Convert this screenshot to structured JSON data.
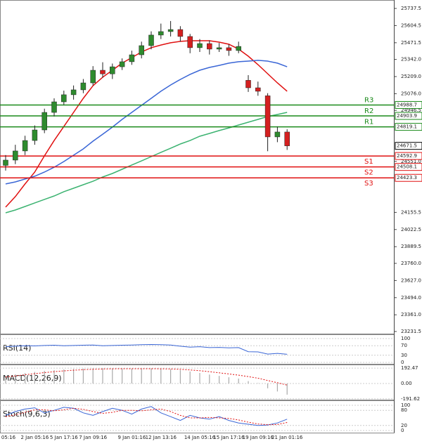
{
  "chart_data": {
    "type": "candlestick",
    "categories": [
      "05:16",
      null,
      null,
      "2 Jan 05:16",
      null,
      null,
      "5 Jan 17:16",
      null,
      null,
      "7 Jan 09:16",
      null,
      null,
      null,
      "9 Jan 01:16",
      null,
      null,
      "12 Jan 13:16",
      null,
      null,
      null,
      "14 Jan 05:16",
      null,
      null,
      "15 Jan 17:16",
      null,
      null,
      "19 Jan 09:16",
      null,
      null,
      "21 Jan 01:16"
    ],
    "open": [
      24520,
      24561,
      24632,
      24713,
      24795,
      24931,
      25013,
      25068,
      25106,
      25160,
      25258,
      25230,
      25285,
      25324,
      25378,
      25449,
      25531,
      25558,
      25574,
      25520,
      25433,
      25465,
      25422,
      25433,
      25411,
      25180,
      25122,
      25060,
      24741,
      24779
    ],
    "high": [
      24600,
      24680,
      24750,
      24830,
      24960,
      25040,
      25100,
      25140,
      25190,
      25290,
      25320,
      25310,
      25350,
      25410,
      25480,
      25560,
      25620,
      25640,
      25600,
      25540,
      25500,
      25490,
      25470,
      25460,
      25480,
      25220,
      25170,
      25080,
      24820,
      24800
    ],
    "low": [
      24480,
      24530,
      24600,
      24680,
      24770,
      24900,
      24990,
      25030,
      25080,
      25140,
      25200,
      25190,
      25260,
      25300,
      25350,
      25420,
      25500,
      25520,
      25480,
      25390,
      25400,
      25380,
      25400,
      25370,
      25390,
      25090,
      25060,
      24630,
      24700,
      24640
    ],
    "close": [
      24561,
      24632,
      24713,
      24795,
      24931,
      25013,
      25068,
      25106,
      25160,
      25258,
      25230,
      25285,
      25324,
      25378,
      25449,
      25531,
      25558,
      25574,
      25520,
      25433,
      25465,
      25422,
      25433,
      25411,
      25443,
      25122,
      25095,
      24741,
      24779,
      24671.5
    ],
    "up_color": "#2e8b2e",
    "down_color": "#d42020",
    "ylim": [
      23215,
      25803
    ],
    "yticks": [
      25737.5,
      25604.5,
      25471.5,
      {
        "value": 25342,
        "label": "25342.0"
      },
      {
        "value": 25209,
        "label": "25209.0"
      },
      {
        "value": 25076,
        "label": "25076.0"
      },
      24946.5,
      {
        "value": 24551,
        "label": "24551.0"
      },
      24155.5,
      24022.5,
      23889.5,
      {
        "value": 23760,
        "label": "23760.0"
      },
      {
        "value": 23627,
        "label": "23627.0"
      },
      {
        "value": 23494,
        "label": "23494.0"
      },
      {
        "value": 23361,
        "label": "23361.0"
      },
      23231.5
    ],
    "moving_averages": [
      {
        "color": "#e01010",
        "values": [
          24196,
          24278,
          24376,
          24468,
          24594,
          24713,
          24822,
          24931,
          25040,
          25138,
          25204,
          25258,
          25313,
          25356,
          25400,
          25433,
          25454,
          25471,
          25482,
          25487,
          25487,
          25487,
          25476,
          25460,
          25422,
          25367,
          25302,
          25231,
          25160,
          25095
        ]
      },
      {
        "color": "#3a66d6",
        "values": [
          24376,
          24392,
          24414,
          24436,
          24468,
          24506,
          24550,
          24599,
          24648,
          24708,
          24762,
          24817,
          24877,
          24931,
          24986,
          25040,
          25095,
          25144,
          25187,
          25226,
          25258,
          25280,
          25296,
          25313,
          25324,
          25329,
          25335,
          25329,
          25313,
          25285
        ]
      },
      {
        "color": "#3cb371",
        "values": [
          24152,
          24174,
          24201,
          24229,
          24256,
          24283,
          24316,
          24343,
          24370,
          24397,
          24430,
          24457,
          24490,
          24523,
          24555,
          24588,
          24621,
          24653,
          24686,
          24713,
          24746,
          24768,
          24790,
          24811,
          24833,
          24855,
          24877,
          24899,
          24915,
          24931
        ]
      }
    ],
    "levels": [
      {
        "name": "R3",
        "value": 24988.7,
        "color": "#1a8a1a"
      },
      {
        "name": "R2",
        "value": 24903.9,
        "color": "#1a8a1a"
      },
      {
        "name": "R1",
        "value": 24819.1,
        "color": "#1a8a1a"
      },
      {
        "name": "S1",
        "value": 24592.9,
        "color": "#e01010"
      },
      {
        "name": "S2",
        "value": 24508.1,
        "color": "#e01010"
      },
      {
        "name": "S3",
        "value": 24423.3,
        "color": "#e01010"
      }
    ],
    "last_price": 24671.5,
    "indicators": [
      {
        "name": "RSI(14)",
        "ylim": [
          0,
          100
        ],
        "yticks": [
          100,
          70,
          30,
          0
        ],
        "series": [
          {
            "color": "#3a66d6",
            "values": [
              66,
              68,
              70,
              69,
              71,
              72,
              70,
              71,
              72,
              73,
              70,
              71,
              72,
              73,
              74,
              75,
              74,
              73,
              68,
              64,
              66,
              62,
              63,
              61,
              62,
              45,
              44,
              35,
              38,
              34
            ]
          }
        ]
      },
      {
        "name": "MACD(12,26,9)",
        "ylim": [
          -220,
          220
        ],
        "yticks": [
          192.47,
          {
            "value": 0,
            "label": "0.00"
          },
          -191.62
        ],
        "histogram": {
          "color": "#aaaaaa",
          "values": [
            100,
            115,
            130,
            145,
            158,
            168,
            176,
            182,
            186,
            190,
            190,
            188,
            186,
            185,
            186,
            187,
            185,
            180,
            168,
            150,
            132,
            112,
            95,
            78,
            62,
            30,
            5,
            -60,
            -100,
            -140
          ]
        },
        "series": [
          {
            "color": "#e01010",
            "dashed": true,
            "values": [
              80,
              95,
              110,
              123,
              136,
              148,
              158,
              166,
              173,
              178,
              182,
              184,
              185,
              185,
              185,
              185,
              184,
              182,
              178,
              170,
              160,
              148,
              134,
              120,
              105,
              86,
              66,
              38,
              10,
              -20
            ]
          }
        ]
      },
      {
        "name": "Stoch(9,6,3)",
        "ylim": [
          0,
          100
        ],
        "yticks": [
          100,
          80,
          20,
          0
        ],
        "series": [
          {
            "color": "#3a66d6",
            "values": [
              60,
              75,
              85,
              90,
              70,
              80,
              92,
              88,
              70,
              60,
              75,
              88,
              80,
              65,
              85,
              95,
              70,
              55,
              40,
              60,
              50,
              45,
              55,
              40,
              30,
              25,
              20,
              22,
              30,
              45
            ]
          },
          {
            "color": "#e01010",
            "dashed": true,
            "values": [
              55,
              62,
              72,
              82,
              82,
              78,
              82,
              88,
              84,
              75,
              68,
              72,
              80,
              80,
              78,
              82,
              85,
              75,
              60,
              50,
              50,
              52,
              50,
              48,
              42,
              33,
              26,
              23,
              24,
              32
            ]
          }
        ]
      }
    ]
  }
}
